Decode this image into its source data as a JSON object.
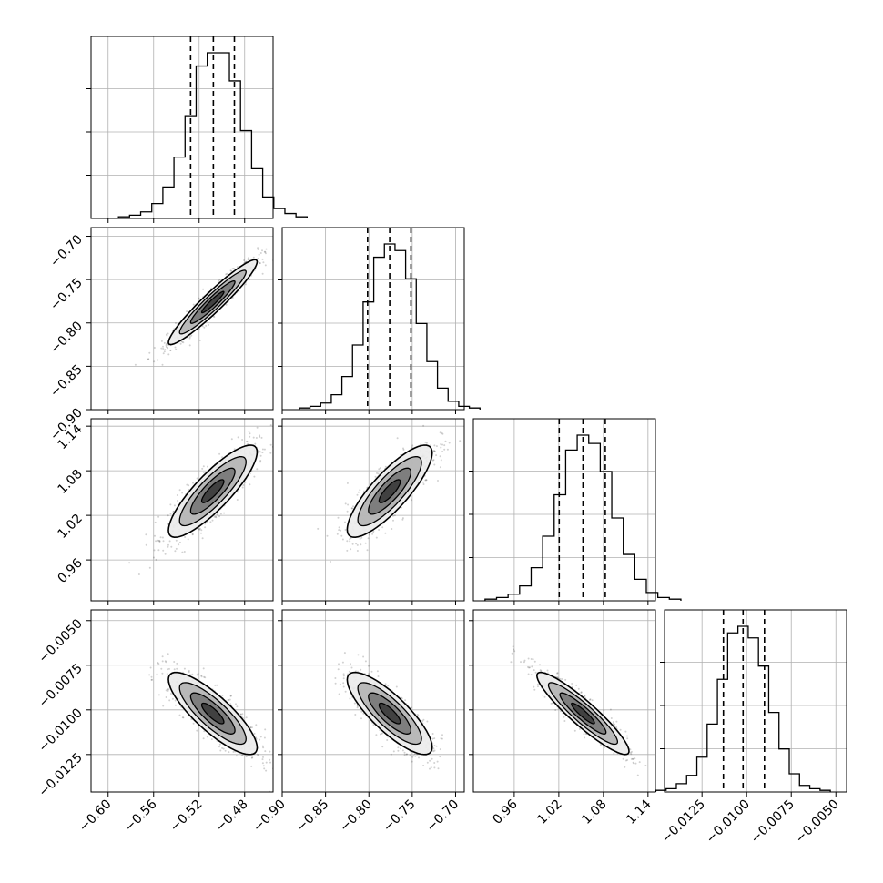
{
  "chart_data": {
    "type": "corner",
    "title": "",
    "grid": true,
    "parameters": [
      {
        "index": 0,
        "range": [
          -0.615,
          -0.455
        ],
        "ticks": [
          -0.6,
          -0.56,
          -0.52,
          -0.48
        ],
        "tick_labels": [
          "−0.60",
          "−0.56",
          "−0.52",
          "−0.48"
        ],
        "quantiles": [
          -0.5275,
          -0.5075,
          -0.489
        ],
        "mean": -0.508,
        "sd": 0.0195
      },
      {
        "index": 1,
        "range": [
          -0.9,
          -0.69
        ],
        "ticks": [
          -0.9,
          -0.85,
          -0.8,
          -0.75,
          -0.7
        ],
        "tick_labels": [
          "−0.90",
          "−0.85",
          "−0.80",
          "−0.75",
          "−0.70"
        ],
        "quantiles": [
          -0.8015,
          -0.776,
          -0.7515
        ],
        "mean": -0.776,
        "sd": 0.0245
      },
      {
        "index": 2,
        "range": [
          0.905,
          1.15
        ],
        "ticks": [
          0.96,
          1.02,
          1.08,
          1.14
        ],
        "tick_labels": [
          "0.96",
          "1.02",
          "1.08",
          "1.14"
        ],
        "quantiles": [
          1.0205,
          1.0525,
          1.0825
        ],
        "mean": 1.0525,
        "sd": 0.031
      },
      {
        "index": 3,
        "range": [
          -0.0146,
          -0.0044
        ],
        "ticks": [
          -0.0125,
          -0.01,
          -0.0075,
          -0.005
        ],
        "tick_labels": [
          "−0.0125",
          "−0.0100",
          "−0.0075",
          "−0.0050"
        ],
        "quantiles": [
          -0.0113,
          -0.0102,
          -0.009
        ],
        "mean": -0.0102,
        "sd": 0.00115
      }
    ],
    "correlations": [
      [
        1.0,
        0.95,
        0.85,
        -0.83
      ],
      [
        0.95,
        1.0,
        0.83,
        -0.82
      ],
      [
        0.85,
        0.83,
        1.0,
        -0.92
      ],
      [
        -0.83,
        -0.82,
        -0.92,
        1.0
      ]
    ],
    "histograms": [
      [
        1,
        2,
        4,
        9,
        19,
        37,
        62,
        92,
        100,
        100,
        83,
        53,
        30,
        13,
        6,
        3,
        1
      ],
      [
        1,
        2,
        4,
        9,
        20,
        39,
        65,
        92,
        100,
        96,
        79,
        52,
        29,
        13,
        5,
        2,
        1
      ],
      [
        1,
        2,
        4,
        9,
        20,
        39,
        64,
        91,
        100,
        95,
        78,
        50,
        28,
        13,
        5,
        2,
        1
      ],
      [
        1,
        2,
        5,
        10,
        21,
        41,
        68,
        96,
        100,
        93,
        76,
        48,
        26,
        11,
        4,
        2,
        1
      ]
    ],
    "contour_levels_sigma": [
      0.5,
      1.0,
      1.5,
      2.0
    ]
  }
}
